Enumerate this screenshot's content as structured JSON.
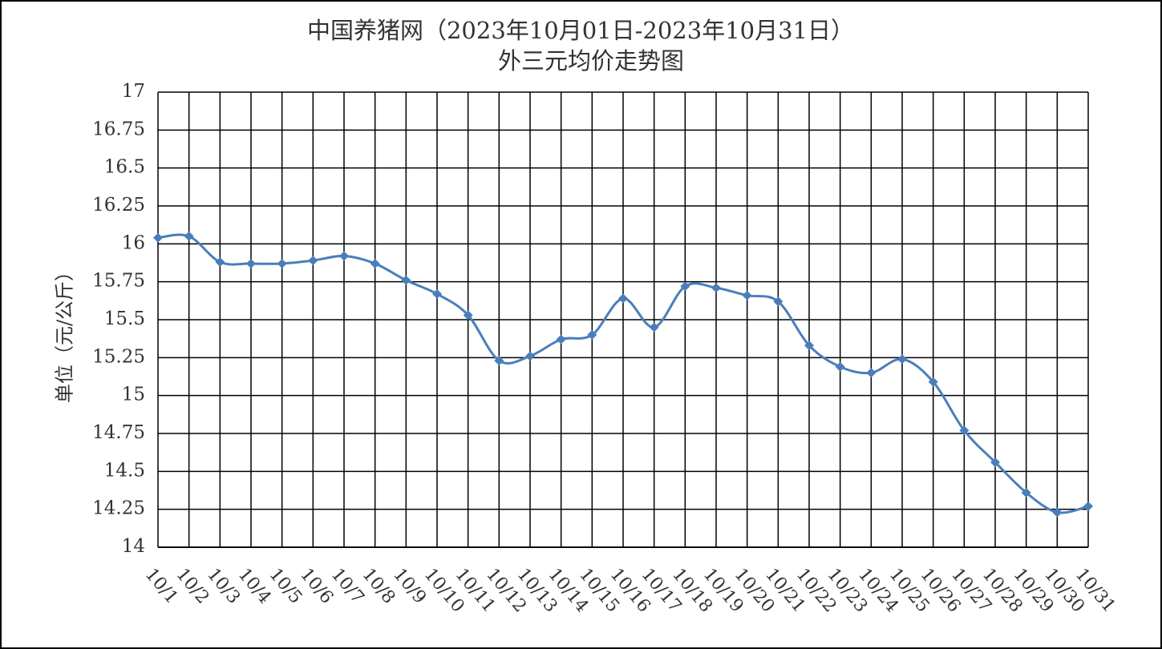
{
  "chart_data": {
    "type": "line",
    "title": "中国养猪网（2023年10月01日-2023年10月31日）",
    "subtitle": "外三元均价走势图",
    "y_label": "单位（元/公斤）",
    "categories": [
      "10/1",
      "10/2",
      "10/3",
      "10/4",
      "10/5",
      "10/6",
      "10/7",
      "10/8",
      "10/9",
      "10/10",
      "10/11",
      "10/12",
      "10/13",
      "10/14",
      "10/15",
      "10/16",
      "10/17",
      "10/18",
      "10/19",
      "10/20",
      "10/21",
      "10/22",
      "10/23",
      "10/24",
      "10/25",
      "10/26",
      "10/27",
      "10/28",
      "10/29",
      "10/30",
      "10/31"
    ],
    "series": [
      {
        "name": "外三元均价",
        "color": "#4a7ebb",
        "values": [
          16.04,
          16.05,
          15.88,
          15.87,
          15.87,
          15.89,
          15.92,
          15.87,
          15.76,
          15.67,
          15.53,
          15.23,
          15.26,
          15.37,
          15.4,
          15.64,
          15.45,
          15.72,
          15.71,
          15.66,
          15.62,
          15.33,
          15.19,
          15.15,
          15.24,
          15.09,
          14.77,
          14.56,
          14.36,
          14.23,
          14.27
        ]
      }
    ],
    "ylim": [
      14,
      17
    ],
    "yticks": [
      14,
      14.25,
      14.5,
      14.75,
      15,
      15.25,
      15.5,
      15.75,
      16,
      16.25,
      16.5,
      16.75,
      17
    ],
    "grid": true,
    "smooth": true
  }
}
